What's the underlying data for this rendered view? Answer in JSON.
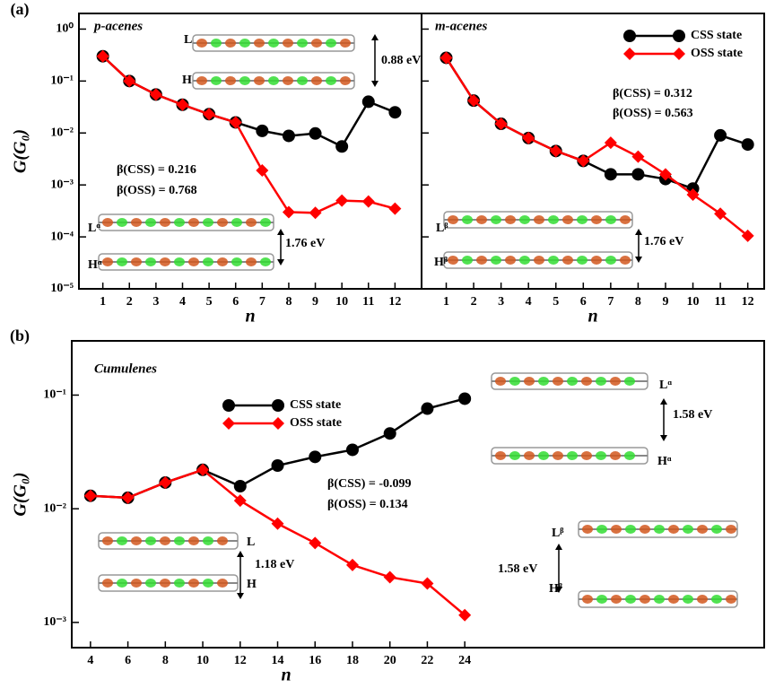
{
  "chart_data": [
    {
      "type": "line",
      "panel_label": "(a)",
      "title": "p-acenes",
      "y_label": "G(G₀)",
      "x_label": "n",
      "x": [
        1,
        2,
        3,
        4,
        5,
        6,
        7,
        8,
        9,
        10,
        11,
        12
      ],
      "xlim": [
        0.1,
        13
      ],
      "ylim": [
        1e-05,
        2
      ],
      "log_y": true,
      "xticks": [
        1,
        2,
        3,
        4,
        5,
        6,
        7,
        8,
        9,
        10,
        11,
        12
      ],
      "yticks": [
        {
          "value": 1,
          "label": "10⁰"
        },
        {
          "value": 0.1,
          "label": "10⁻¹"
        },
        {
          "value": 0.01,
          "label": "10⁻²"
        },
        {
          "value": 0.001,
          "label": "10⁻³"
        },
        {
          "value": 0.0001,
          "label": "10⁻⁴"
        },
        {
          "value": 1e-05,
          "label": "10⁻⁵"
        }
      ],
      "series": [
        {
          "color": "#000000",
          "marker": "circle",
          "values": [
            0.3,
            0.1,
            0.055,
            0.035,
            0.023,
            0.016,
            0.011,
            0.0088,
            0.0098,
            0.0055,
            0.04,
            0.025
          ]
        },
        {
          "color": "#ff0000",
          "marker": "diamond",
          "values": [
            0.3,
            0.1,
            0.055,
            0.035,
            0.023,
            0.016,
            0.0019,
            0.0003,
            0.00029,
            0.0005,
            0.00048,
            0.00035
          ]
        }
      ],
      "annotations": [
        "p-acenes",
        "β(CSS) = 0.216",
        "β(OSS) = 0.768",
        "L",
        "H",
        "0.88 eV",
        "Lᵅ",
        "Hᵅ",
        "1.76 eV"
      ]
    },
    {
      "type": "line",
      "title": "m-acenes",
      "x_label": "n",
      "x": [
        1,
        2,
        3,
        4,
        5,
        6,
        7,
        8,
        9,
        10,
        11,
        12
      ],
      "xlim": [
        0.1,
        12.6
      ],
      "ylim": [
        1e-05,
        2
      ],
      "log_y": true,
      "xticks": [
        1,
        2,
        3,
        4,
        5,
        6,
        7,
        8,
        9,
        10,
        11,
        12
      ],
      "yticks": [
        1,
        0.1,
        0.01,
        0.001,
        0.0001,
        1e-05
      ],
      "legend": "upper right",
      "series": [
        {
          "name": "CSS state",
          "color": "#000000",
          "marker": "circle",
          "values": [
            0.28,
            0.042,
            0.015,
            0.008,
            0.0045,
            0.0029,
            0.0016,
            0.0016,
            0.0013,
            0.00085,
            0.009,
            0.006
          ]
        },
        {
          "name": "OSS state",
          "color": "#ff0000",
          "marker": "diamond",
          "values": [
            0.28,
            0.042,
            0.015,
            0.008,
            0.0045,
            0.0029,
            0.0065,
            0.0035,
            0.0016,
            0.00065,
            0.00028,
            0.000105
          ]
        }
      ],
      "annotations": [
        "m-acenes",
        "β(CSS) = 0.312",
        "β(OSS) = 0.563",
        "Lᵝ",
        "Hᵝ",
        "1.76 eV"
      ]
    },
    {
      "type": "line",
      "panel_label": "(b)",
      "title": "Cumulenes",
      "y_label": "G(G₀)",
      "x_label": "n",
      "x": [
        4,
        6,
        8,
        10,
        12,
        14,
        16,
        18,
        20,
        22,
        24
      ],
      "xlim": [
        3,
        40
      ],
      "ylim": [
        0.0006,
        0.3
      ],
      "log_y": true,
      "xticks": [
        4,
        6,
        8,
        10,
        12,
        14,
        16,
        18,
        20,
        22,
        24
      ],
      "yticks": [
        {
          "value": 0.1,
          "label": "10⁻¹"
        },
        {
          "value": 0.01,
          "label": "10⁻²"
        },
        {
          "value": 0.001,
          "label": "10⁻³"
        }
      ],
      "legend": "upper center",
      "series": [
        {
          "name": "CSS state",
          "color": "#000000",
          "marker": "circle",
          "values": [
            0.013,
            0.0125,
            0.017,
            0.022,
            0.0158,
            0.024,
            0.0286,
            0.033,
            0.046,
            0.076,
            0.093
          ]
        },
        {
          "name": "OSS state",
          "color": "#ff0000",
          "marker": "diamond",
          "values": [
            0.013,
            0.0125,
            0.017,
            0.022,
            0.0118,
            0.0074,
            0.005,
            0.0032,
            0.0025,
            0.0022,
            0.00116
          ]
        }
      ],
      "annotations": [
        "Cumulenes",
        "β(CSS) = -0.099",
        "β(OSS) = 0.134",
        "L",
        "H",
        "1.18 eV",
        "Lᵅ",
        "Hᵅ",
        "1.58 eV",
        "Lᵝ",
        "Hᵝ",
        "1.58 eV"
      ]
    }
  ]
}
